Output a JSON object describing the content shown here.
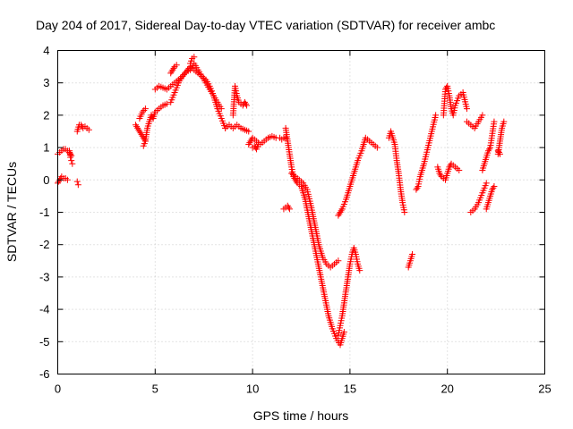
{
  "chart_data": {
    "type": "scatter",
    "title": "Day 204 of 2017, Sidereal Day-to-day VTEC variation (SDTVAR) for receiver ambc",
    "xlabel": "GPS time / hours",
    "ylabel": "SDTVAR / TECUs",
    "xlim": [
      0,
      25
    ],
    "ylim": [
      -6,
      4
    ],
    "xticks": [
      0,
      5,
      10,
      15,
      20,
      25
    ],
    "yticks": [
      -6,
      -5,
      -4,
      -3,
      -2,
      -1,
      0,
      1,
      2,
      3,
      4
    ],
    "xtick_labels": [
      "0",
      "5",
      "10",
      "15",
      "20",
      "25"
    ],
    "ytick_labels": [
      "-6",
      "-5",
      "-4",
      "-3",
      "-2",
      "-1",
      "0",
      "1",
      "2",
      "3",
      "4"
    ],
    "grid": true,
    "marker": "plus",
    "color": "#ff0000",
    "segments": [
      {
        "x": [
          0.0,
          0.1,
          0.2,
          0.3,
          0.4,
          0.5,
          0.6,
          0.7
        ],
        "y": [
          0.8,
          0.85,
          0.9,
          0.95,
          0.95,
          0.9,
          0.85,
          0.75
        ]
      },
      {
        "x": [
          0.6,
          0.65,
          0.7,
          0.75
        ],
        "y": [
          0.9,
          0.7,
          0.6,
          0.5
        ]
      },
      {
        "x": [
          0.0,
          0.1,
          0.2,
          0.3,
          0.4,
          0.5
        ],
        "y": [
          -0.1,
          0.0,
          0.1,
          0.05,
          0.05,
          0.0
        ]
      },
      {
        "x": [
          1.0,
          1.05
        ],
        "y": [
          -0.05,
          -0.15
        ]
      },
      {
        "x": [
          1.0,
          1.1,
          1.2,
          1.3,
          1.4,
          1.5,
          1.6
        ],
        "y": [
          1.5,
          1.7,
          1.7,
          1.6,
          1.65,
          1.6,
          1.55
        ]
      },
      {
        "x": [
          4.0,
          4.1,
          4.2,
          4.3,
          4.4,
          4.5,
          4.6,
          4.7,
          4.8,
          4.9,
          5.0,
          5.2,
          5.4,
          5.6
        ],
        "y": [
          1.7,
          1.6,
          1.5,
          1.4,
          1.3,
          1.2,
          1.6,
          1.8,
          2.0,
          1.9,
          2.1,
          2.2,
          2.3,
          2.35
        ]
      },
      {
        "x": [
          4.2,
          4.35,
          4.5
        ],
        "y": [
          1.9,
          2.1,
          2.2
        ]
      },
      {
        "x": [
          4.4,
          4.5
        ],
        "y": [
          1.05,
          1.2
        ]
      },
      {
        "x": [
          5.0,
          5.2,
          5.4,
          5.6,
          5.8,
          6.0,
          6.2,
          6.4,
          6.6,
          6.8,
          7.0,
          7.2,
          7.4,
          7.6,
          7.8,
          8.0,
          8.2,
          8.4
        ],
        "y": [
          2.8,
          2.9,
          2.85,
          2.8,
          2.9,
          3.0,
          3.1,
          3.2,
          3.35,
          3.5,
          3.4,
          3.3,
          3.2,
          3.0,
          2.8,
          2.6,
          2.4,
          2.2
        ]
      },
      {
        "x": [
          5.8,
          6.0,
          6.2,
          6.4,
          6.6,
          6.8,
          7.0,
          7.2,
          7.4,
          7.6,
          7.8,
          8.0,
          8.2,
          8.4,
          8.6
        ],
        "y": [
          2.4,
          2.7,
          3.0,
          3.2,
          3.35,
          3.4,
          3.6,
          3.4,
          3.2,
          3.1,
          2.9,
          2.6,
          2.2,
          1.9,
          1.6
        ]
      },
      {
        "x": [
          5.8,
          5.9,
          6.0,
          6.1
        ],
        "y": [
          3.3,
          3.4,
          3.5,
          3.55
        ]
      },
      {
        "x": [
          6.8,
          6.9,
          7.0
        ],
        "y": [
          3.6,
          3.75,
          3.8
        ]
      },
      {
        "x": [
          8.6,
          8.8,
          9.0,
          9.2,
          9.4,
          9.6,
          9.8
        ],
        "y": [
          1.6,
          1.7,
          1.6,
          1.7,
          1.6,
          1.55,
          1.5
        ]
      },
      {
        "x": [
          9.0,
          9.1,
          9.2,
          9.3,
          9.4,
          9.5,
          9.6,
          9.7
        ],
        "y": [
          2.0,
          2.9,
          2.6,
          2.4,
          2.35,
          2.3,
          2.4,
          2.3
        ]
      },
      {
        "x": [
          9.8,
          9.9,
          10.0,
          10.2,
          10.4,
          10.6,
          10.8,
          11.0,
          11.2
        ],
        "y": [
          1.1,
          1.2,
          1.3,
          1.2,
          1.1,
          1.2,
          1.3,
          1.35,
          1.3
        ]
      },
      {
        "x": [
          10.0,
          10.1,
          10.2,
          10.3
        ],
        "y": [
          1.0,
          1.05,
          0.95,
          1.1
        ]
      },
      {
        "x": [
          11.4,
          11.5,
          11.6,
          11.7
        ],
        "y": [
          1.3,
          1.25,
          1.3,
          1.3
        ]
      },
      {
        "x": [
          11.6,
          11.7,
          11.8,
          11.9
        ],
        "y": [
          -0.9,
          -0.85,
          -0.8,
          -0.9
        ]
      },
      {
        "x": [
          11.7,
          11.8,
          11.9,
          12.0,
          12.1,
          12.2,
          12.3,
          12.5,
          12.7,
          12.9,
          13.1,
          13.3,
          13.5,
          13.7,
          13.9,
          14.1,
          14.3,
          14.5,
          14.7
        ],
        "y": [
          1.6,
          1.2,
          0.8,
          0.4,
          0.1,
          0.0,
          -0.1,
          -0.2,
          -0.6,
          -1.2,
          -1.8,
          -2.4,
          -3.0,
          -3.6,
          -4.2,
          -4.6,
          -4.9,
          -5.1,
          -4.7
        ]
      },
      {
        "x": [
          12.0,
          12.2,
          12.4,
          12.6,
          12.8,
          13.0,
          13.2,
          13.4,
          13.6,
          13.8,
          14.0,
          14.2,
          14.4
        ],
        "y": [
          0.2,
          0.1,
          0.0,
          -0.1,
          -0.3,
          -0.8,
          -1.4,
          -2.0,
          -2.4,
          -2.6,
          -2.7,
          -2.6,
          -2.5
        ]
      },
      {
        "x": [
          14.4,
          14.5,
          14.6,
          14.7,
          14.8,
          14.9,
          15.0,
          15.1,
          15.2,
          15.3,
          15.4,
          15.5
        ],
        "y": [
          -4.8,
          -4.5,
          -4.2,
          -3.8,
          -3.4,
          -3.0,
          -2.6,
          -2.3,
          -2.1,
          -2.3,
          -2.6,
          -2.8
        ]
      },
      {
        "x": [
          14.6,
          14.8,
          15.0,
          15.2,
          15.4,
          15.6,
          15.8,
          16.0,
          16.2,
          16.4
        ],
        "y": [
          -0.9,
          -0.6,
          -0.2,
          0.2,
          0.6,
          0.9,
          1.3,
          1.2,
          1.1,
          1.0
        ]
      },
      {
        "x": [
          14.4,
          14.5,
          14.6
        ],
        "y": [
          -1.1,
          -1.0,
          -0.9
        ]
      },
      {
        "x": [
          17.0,
          17.1,
          17.2,
          17.3,
          17.4,
          17.5,
          17.6,
          17.7,
          17.8
        ],
        "y": [
          1.3,
          1.5,
          1.3,
          1.1,
          0.6,
          0.2,
          -0.3,
          -0.7,
          -1.0
        ]
      },
      {
        "x": [
          18.0,
          18.1,
          18.2
        ],
        "y": [
          -2.7,
          -2.5,
          -2.3
        ]
      },
      {
        "x": [
          18.4,
          18.5,
          18.6,
          18.8,
          19.0,
          19.2,
          19.4
        ],
        "y": [
          -0.3,
          -0.2,
          0.1,
          0.5,
          1.0,
          1.5,
          2.0
        ]
      },
      {
        "x": [
          19.5,
          19.6,
          19.7,
          19.8,
          19.9,
          20.0,
          20.1,
          20.2,
          20.4,
          20.6
        ],
        "y": [
          0.4,
          0.2,
          0.1,
          0.05,
          0.0,
          0.2,
          0.4,
          0.5,
          0.4,
          0.3
        ]
      },
      {
        "x": [
          19.8,
          19.9,
          20.0,
          20.1,
          20.2,
          20.3,
          20.4,
          20.6,
          20.8,
          21.0
        ],
        "y": [
          2.0,
          2.8,
          2.9,
          2.6,
          2.2,
          2.0,
          2.3,
          2.6,
          2.7,
          2.2
        ]
      },
      {
        "x": [
          21.0,
          21.2,
          21.4,
          21.6,
          21.8
        ],
        "y": [
          1.8,
          1.7,
          1.6,
          1.8,
          2.0
        ]
      },
      {
        "x": [
          21.2,
          21.4,
          21.6,
          21.8,
          22.0
        ],
        "y": [
          -1.0,
          -0.9,
          -0.7,
          -0.4,
          -0.1
        ]
      },
      {
        "x": [
          21.8,
          21.9,
          22.0,
          22.1,
          22.2,
          22.4
        ],
        "y": [
          0.3,
          0.5,
          0.7,
          0.9,
          1.0,
          1.8
        ]
      },
      {
        "x": [
          22.0,
          22.1,
          22.2,
          22.3,
          22.4
        ],
        "y": [
          -0.9,
          -0.7,
          -0.5,
          -0.3,
          -0.2
        ]
      },
      {
        "x": [
          22.6,
          22.7,
          22.8,
          22.9
        ],
        "y": [
          0.8,
          1.2,
          1.6,
          1.8
        ]
      },
      {
        "x": [
          22.6,
          22.7
        ],
        "y": [
          0.9,
          0.8
        ]
      }
    ]
  }
}
